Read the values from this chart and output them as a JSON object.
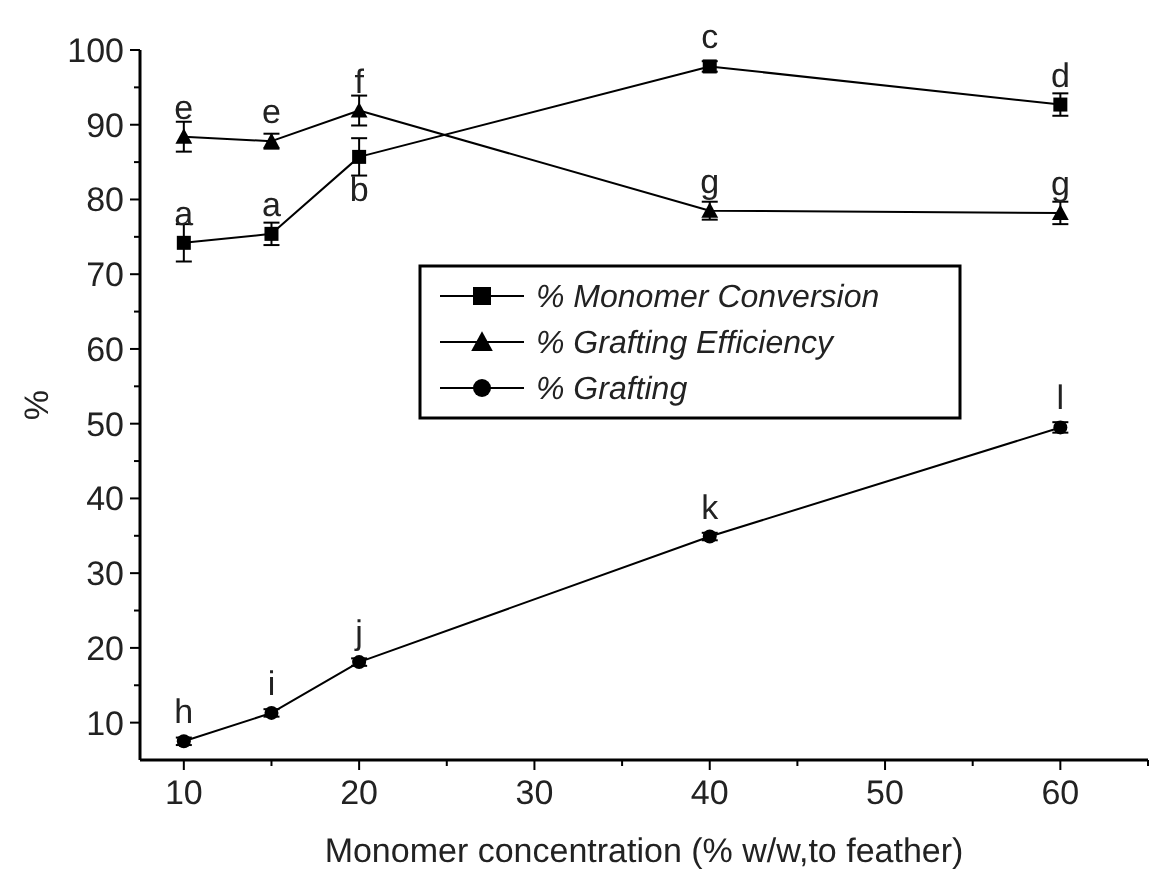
{
  "chart_data": {
    "type": "line",
    "xlabel": "Monomer concentration (% w/w,to feather)",
    "ylabel": "%",
    "x": [
      10,
      15,
      20,
      40,
      60
    ],
    "series": [
      {
        "name": "% Monomer Conversion",
        "color": "#000000",
        "marker": "square",
        "values": [
          74.2,
          75.4,
          85.7,
          97.8,
          92.7
        ],
        "errors": [
          2.5,
          1.5,
          2.5,
          0.7,
          1.5
        ]
      },
      {
        "name": "% Grafting Efficiency",
        "color": "#000000",
        "marker": "triangle",
        "values": [
          88.4,
          87.8,
          91.9,
          78.5,
          78.2
        ],
        "errors": [
          2,
          1,
          2,
          1.2,
          1.5
        ]
      },
      {
        "name": "% Grafting",
        "color": "#000000",
        "marker": "circle",
        "values": [
          7.5,
          11.3,
          18.1,
          34.9,
          49.5
        ],
        "errors": [
          0.5,
          0.5,
          0.5,
          0.5,
          0.7
        ]
      }
    ],
    "xlim": [
      7.5,
      65
    ],
    "xticks": [
      10,
      {
        "value": 15,
        "label": null
      },
      20,
      {
        "value": 25,
        "label": null
      },
      30,
      {
        "value": 35,
        "label": null
      },
      40,
      {
        "value": 45,
        "label": null
      },
      50,
      {
        "value": 55,
        "label": null
      },
      60,
      {
        "value": 65,
        "label": null
      }
    ],
    "ylim": [
      5,
      100
    ],
    "yticks": [
      10,
      {
        "value": 15,
        "label": null
      },
      20,
      {
        "value": 25,
        "label": null
      },
      30,
      {
        "value": 35,
        "label": null
      },
      40,
      {
        "value": 45,
        "label": null
      },
      50,
      {
        "value": 55,
        "label": null
      },
      60,
      {
        "value": 65,
        "label": null
      },
      70,
      {
        "value": 75,
        "label": null
      },
      80,
      {
        "value": 85,
        "label": null
      },
      90,
      {
        "value": 95,
        "label": null
      },
      100
    ],
    "legend": "center",
    "line_style": "solid",
    "grid": false,
    "annotations": [
      {
        "text": "a",
        "x": 10,
        "y": 74.2
      },
      {
        "text": "a",
        "x": 15,
        "y": 75.4
      },
      {
        "text": "b",
        "x": 20,
        "y": 85.7
      },
      {
        "text": "c",
        "x": 40,
        "y": 97.8
      },
      {
        "text": "d",
        "x": 60,
        "y": 92.7
      },
      {
        "text": "e",
        "x": 10,
        "y": 88.4
      },
      {
        "text": "e",
        "x": 15,
        "y": 87.8
      },
      {
        "text": "f",
        "x": 20,
        "y": 91.9
      },
      {
        "text": "g",
        "x": 40,
        "y": 78.5
      },
      {
        "text": "g",
        "x": 60,
        "y": 78.2
      },
      {
        "text": "h",
        "x": 10,
        "y": 7.5
      },
      {
        "text": "i",
        "x": 15,
        "y": 11.3
      },
      {
        "text": "j",
        "x": 20,
        "y": 18.1
      },
      {
        "text": "k",
        "x": 40,
        "y": 34.9
      },
      {
        "text": "l",
        "x": 60,
        "y": 49.5
      }
    ]
  }
}
